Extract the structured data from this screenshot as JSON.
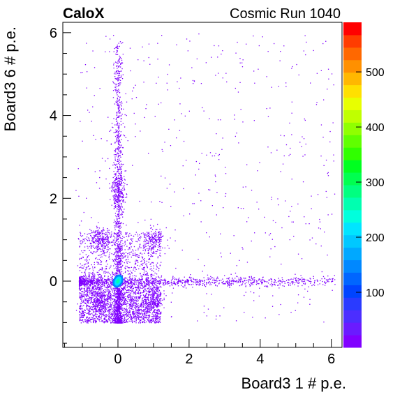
{
  "header": {
    "left_label": "CaloX",
    "right_label": "Cosmic Run 1040"
  },
  "chart_data": {
    "type": "heatmap",
    "title": "",
    "xlabel": "Board3 1 # p.e.",
    "ylabel": "Board3 6 # p.e.",
    "xlim": [
      -1.55,
      6.3
    ],
    "ylim": [
      -1.6,
      6.25
    ],
    "x_ticks": [
      0,
      2,
      4,
      6
    ],
    "y_ticks": [
      0,
      2,
      4,
      6
    ],
    "x_tick_labels": [
      "0",
      "2",
      "4",
      "6"
    ],
    "y_tick_labels": [
      "0",
      "2",
      "4",
      "6"
    ],
    "z_range": [
      0,
      590
    ],
    "z_ticks": [
      100,
      200,
      300,
      400,
      500
    ],
    "z_tick_labels": [
      "100",
      "200",
      "300",
      "400",
      "500"
    ],
    "colormap": "rainbow",
    "grid": false,
    "legend": "colorbar-right",
    "density_features": [
      {
        "name": "pedestal-peak",
        "x": 0.0,
        "y": 0.0,
        "sx": 0.05,
        "sy": 0.05,
        "weight": 1.0
      },
      {
        "name": "vertical-band",
        "x": 0.0,
        "y": 0.0,
        "sx": 0.06,
        "sy": 2.0,
        "weight": 0.35
      },
      {
        "name": "horizontal-band",
        "x": 1.5,
        "y": 0.0,
        "sx": 2.0,
        "sy": 0.06,
        "weight": 0.3
      },
      {
        "name": "cross-cluster-1",
        "x": -0.5,
        "y": 1.0,
        "sx": 0.15,
        "sy": 0.15,
        "weight": 0.08
      },
      {
        "name": "cross-cluster-2",
        "x": 1.0,
        "y": 1.0,
        "sx": 0.15,
        "sy": 0.15,
        "weight": 0.06
      },
      {
        "name": "cross-cluster-3",
        "x": -0.5,
        "y": -0.5,
        "sx": 0.15,
        "sy": 0.15,
        "weight": 0.08
      },
      {
        "name": "cross-cluster-4",
        "x": 1.0,
        "y": -0.5,
        "sx": 0.15,
        "sy": 0.15,
        "weight": 0.06
      },
      {
        "name": "upper-blob",
        "x": 0.0,
        "y": 2.2,
        "sx": 0.1,
        "sy": 0.25,
        "weight": 0.1
      }
    ],
    "colors": {
      "palette": [
        "#8000ff",
        "#6a1bff",
        "#4c2eff",
        "#2a3bff",
        "#0044ff",
        "#0066ff",
        "#0088ff",
        "#00a8ff",
        "#00c8ff",
        "#00e5ff",
        "#00ffdd",
        "#00ffb0",
        "#00ff80",
        "#00ff50",
        "#00ff20",
        "#30ff00",
        "#60ff00",
        "#90ff00",
        "#c0ff00",
        "#e8ff00",
        "#ffe000",
        "#ffb800",
        "#ff9000",
        "#ff6800",
        "#ff3c00",
        "#ff0000"
      ]
    }
  }
}
